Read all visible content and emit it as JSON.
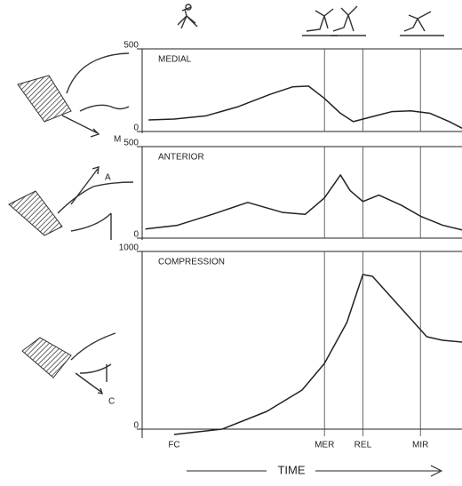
{
  "chart_data": [
    {
      "type": "line",
      "title": "MEDIAL",
      "force_label": "M",
      "color": "#222",
      "xlim": [
        0,
        100
      ],
      "ylim": [
        0,
        500
      ],
      "yticks": [
        0,
        500
      ],
      "x": [
        2,
        10,
        20,
        30,
        40,
        47,
        52,
        57,
        62,
        66,
        72,
        78,
        84,
        90,
        96,
        100
      ],
      "values": [
        70,
        75,
        95,
        150,
        225,
        270,
        275,
        200,
        110,
        60,
        90,
        120,
        125,
        110,
        60,
        20
      ]
    },
    {
      "type": "line",
      "title": "ANTERIOR",
      "force_label": "A",
      "color": "#222",
      "xlim": [
        0,
        100
      ],
      "ylim": [
        0,
        500
      ],
      "yticks": [
        0,
        500
      ],
      "x": [
        1,
        11,
        22,
        33,
        44,
        51,
        57,
        62,
        65,
        69,
        74,
        81,
        87,
        94,
        100
      ],
      "values": [
        50,
        70,
        130,
        195,
        140,
        130,
        220,
        345,
        260,
        200,
        235,
        180,
        120,
        70,
        45
      ]
    },
    {
      "type": "line",
      "title": "COMPRESSION",
      "force_label": "C",
      "color": "#222",
      "xlim": [
        0,
        100
      ],
      "ylim": [
        -40,
        1000
      ],
      "yticks": [
        0,
        1000
      ],
      "x": [
        10,
        25,
        39,
        50,
        57,
        64,
        69,
        72,
        81,
        89,
        94,
        100
      ],
      "values": [
        -30,
        0,
        100,
        220,
        370,
        600,
        870,
        860,
        680,
        520,
        500,
        490
      ],
      "xticks": [
        {
          "value": 10,
          "label": "FC"
        },
        {
          "value": 57,
          "label": "MER"
        },
        {
          "value": 69,
          "label": "REL"
        },
        {
          "value": 87,
          "label": "MIR"
        }
      ],
      "xlabel": "TIME"
    }
  ]
}
